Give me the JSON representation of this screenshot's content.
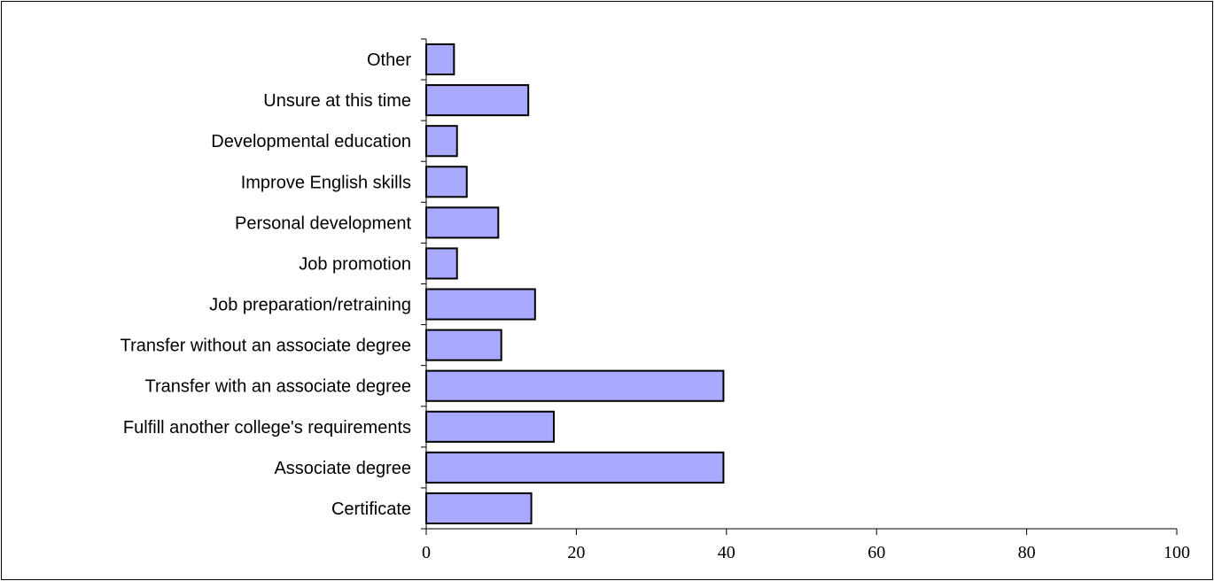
{
  "chart_data": {
    "type": "bar",
    "orientation": "horizontal",
    "categories": [
      "Certificate",
      "Associate degree",
      "Fulfill another college's requirements",
      "Transfer with an associate degree",
      "Transfer without an associate degree",
      "Job preparation/retraining",
      "Job promotion",
      "Personal development",
      "Improve English skills",
      "Developmental education",
      "Unsure at this time",
      "Other"
    ],
    "values": [
      14,
      39.6,
      17,
      39.6,
      10,
      14.5,
      4.1,
      9.6,
      5.4,
      4.1,
      13.6,
      3.7
    ],
    "title": "",
    "xlabel": "",
    "ylabel": "",
    "xlim": [
      0,
      100
    ],
    "xticks": [
      0,
      20,
      40,
      60,
      80,
      100
    ],
    "grid": false,
    "legend": "none",
    "bar_color": "#A9A9FF",
    "border_color": "#000000"
  }
}
